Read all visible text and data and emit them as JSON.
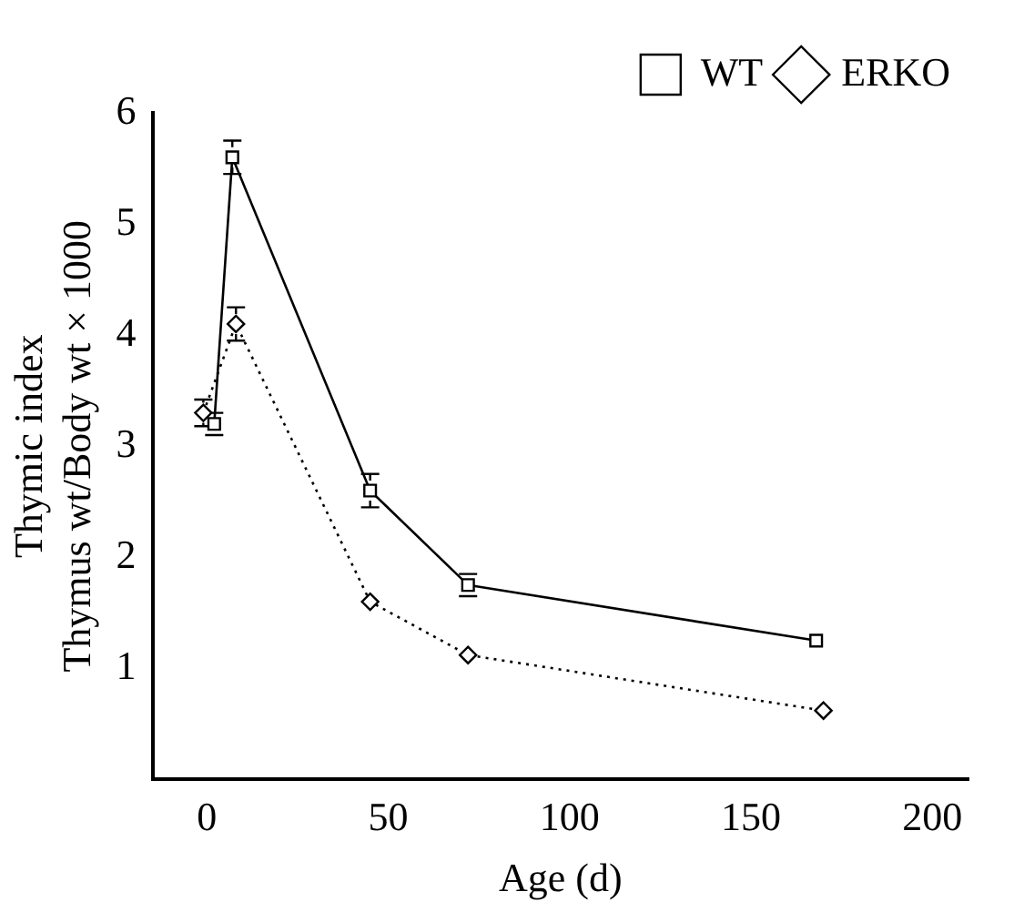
{
  "chart_data": {
    "type": "line",
    "xlabel": "Age (d)",
    "ylabel": "Thymic index\nThymus wt/Body wt × 1000",
    "xlim": [
      -15,
      210
    ],
    "xticks": [
      0,
      50,
      100,
      150,
      200
    ],
    "ylim": [
      0,
      6
    ],
    "yticks": [
      1,
      2,
      3,
      4,
      5,
      6
    ],
    "grid": false,
    "legend": "top right",
    "series": [
      {
        "name": "WT",
        "color": "#000000",
        "marker": "square",
        "line_style": "solid",
        "x": [
          2,
          7,
          45,
          72,
          168
        ],
        "values": [
          3.2,
          5.6,
          2.6,
          1.75,
          1.25
        ],
        "errors": [
          0.1,
          0.15,
          0.15,
          0.1,
          null
        ]
      },
      {
        "name": "ERKO",
        "color": "#000000",
        "marker": "diamond",
        "line_style": "dotted",
        "x": [
          -1,
          8,
          45,
          72,
          170
        ],
        "values": [
          3.3,
          4.1,
          1.6,
          1.12,
          0.62
        ],
        "errors": [
          0.12,
          0.15,
          null,
          null,
          null
        ]
      }
    ]
  }
}
